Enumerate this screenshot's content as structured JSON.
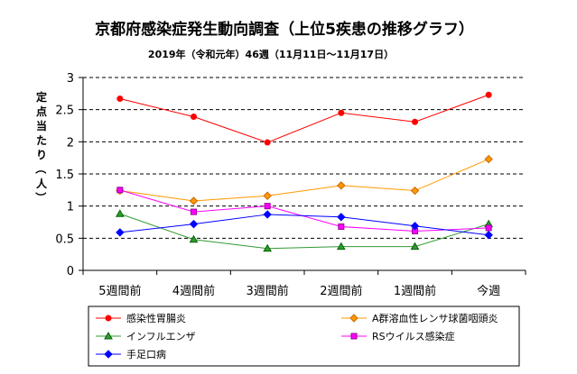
{
  "chart_data": {
    "type": "line",
    "title": "京都府感染症発生動向調査（上位5疾患の推移グラフ）",
    "subtitle": "2019年（令和元年）46週（11月11日～11月17日）",
    "ylabel": "定点当たり（人）",
    "xlabel": "",
    "categories": [
      "5週間前",
      "4週間前",
      "3週間前",
      "2週間前",
      "1週間前",
      "今週"
    ],
    "ylim": [
      0,
      3
    ],
    "yticks": [
      "0",
      "0.5",
      "1",
      "1.5",
      "2",
      "2.5",
      "3"
    ],
    "grid": "horizontal dashed",
    "legend_position": "bottom",
    "series": [
      {
        "name": "感染性胃腸炎",
        "values": [
          2.67,
          2.39,
          1.99,
          2.45,
          2.31,
          2.73
        ],
        "color": "#ff0000",
        "marker": "circle"
      },
      {
        "name": "A群溶血性レンサ球菌咽頭炎",
        "values": [
          1.24,
          1.08,
          1.16,
          1.32,
          1.24,
          1.73
        ],
        "color": "#ff9900",
        "marker": "diamond"
      },
      {
        "name": "インフルエンザ",
        "values": [
          0.88,
          0.48,
          0.34,
          0.37,
          0.37,
          0.72
        ],
        "color": "#339933",
        "marker": "triangle"
      },
      {
        "name": "RSウイルス感染症",
        "values": [
          1.25,
          0.91,
          1.0,
          0.68,
          0.61,
          0.66
        ],
        "color": "#ff00ff",
        "marker": "square"
      },
      {
        "name": "手足口病",
        "values": [
          0.59,
          0.72,
          0.87,
          0.83,
          0.69,
          0.55
        ],
        "color": "#0000ff",
        "marker": "diamond"
      }
    ]
  }
}
